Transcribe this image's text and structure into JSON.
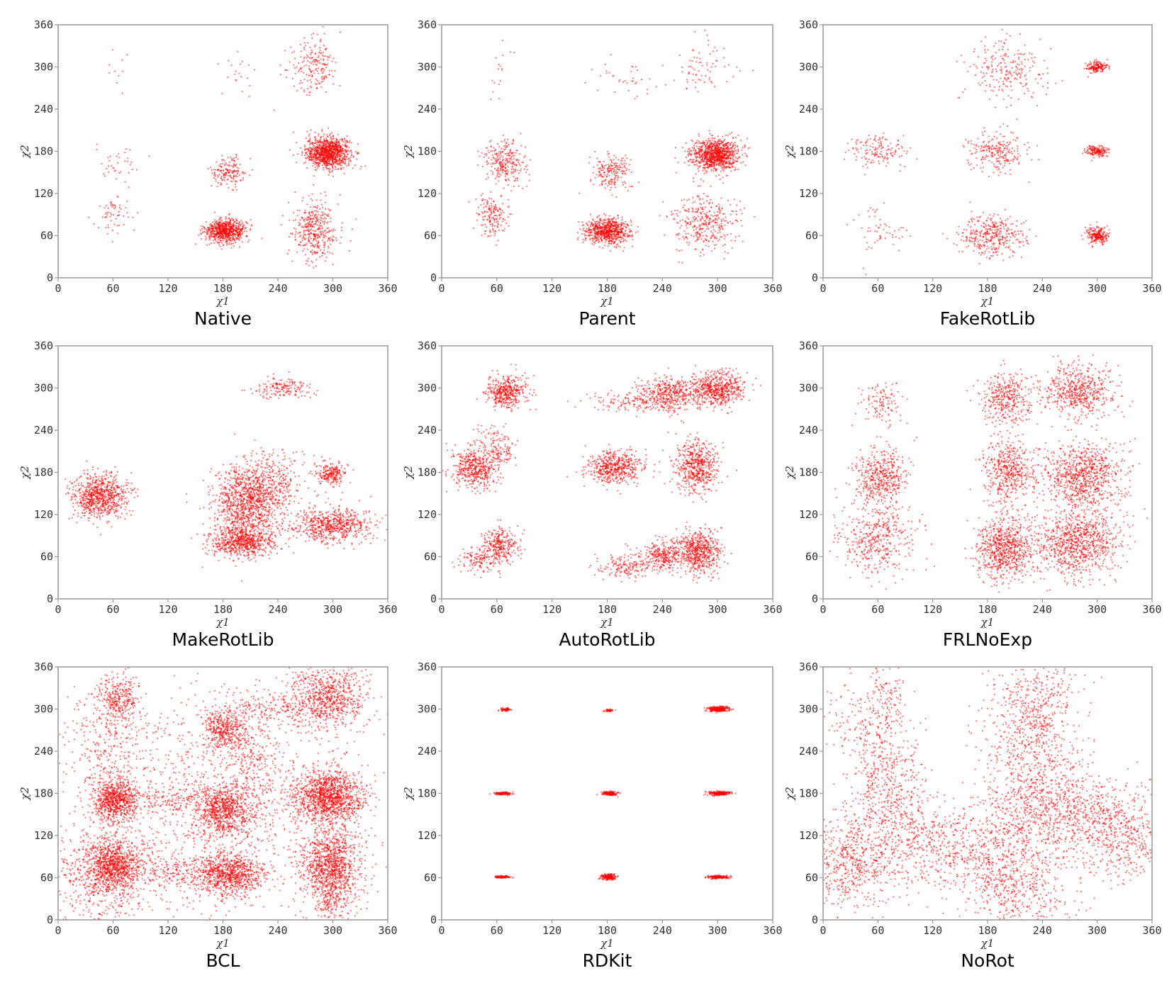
{
  "figure": {
    "point_color": "#ff0000"
  },
  "chart_data": [
    {
      "type": "scatter",
      "title": "Native",
      "xlabel": "χ1",
      "ylabel": "χ2",
      "xlim": [
        0,
        360
      ],
      "ylim": [
        0,
        360
      ],
      "xticks": [
        0,
        60,
        120,
        180,
        240,
        300,
        360
      ],
      "yticks": [
        0,
        60,
        120,
        180,
        240,
        300,
        360
      ],
      "grid": false,
      "clusters": [
        {
          "cx": 295,
          "cy": 178,
          "sx": 12,
          "sy": 11,
          "n": 3200
        },
        {
          "cx": 183,
          "cy": 67,
          "sx": 11,
          "sy": 8,
          "n": 2200
        },
        {
          "cx": 280,
          "cy": 68,
          "sx": 12,
          "sy": 22,
          "n": 1200
        },
        {
          "cx": 280,
          "cy": 300,
          "sx": 14,
          "sy": 20,
          "n": 600
        },
        {
          "cx": 185,
          "cy": 150,
          "sx": 10,
          "sy": 11,
          "n": 500
        },
        {
          "cx": 60,
          "cy": 88,
          "sx": 11,
          "sy": 14,
          "n": 180
        },
        {
          "cx": 65,
          "cy": 160,
          "sx": 12,
          "sy": 15,
          "n": 110
        },
        {
          "cx": 195,
          "cy": 285,
          "sx": 14,
          "sy": 18,
          "n": 60
        },
        {
          "cx": 65,
          "cy": 300,
          "sx": 6,
          "sy": 22,
          "n": 30
        }
      ]
    },
    {
      "type": "scatter",
      "title": "Parent",
      "xlabel": "χ1",
      "ylabel": "χ2",
      "xlim": [
        0,
        360
      ],
      "ylim": [
        0,
        360
      ],
      "xticks": [
        0,
        60,
        120,
        180,
        240,
        300,
        360
      ],
      "yticks": [
        0,
        60,
        120,
        180,
        240,
        300,
        360
      ],
      "grid": false,
      "clusters": [
        {
          "cx": 297,
          "cy": 175,
          "sx": 13,
          "sy": 11,
          "n": 3000
        },
        {
          "cx": 180,
          "cy": 66,
          "sx": 12,
          "sy": 9,
          "n": 2200
        },
        {
          "cx": 287,
          "cy": 80,
          "sx": 18,
          "sy": 20,
          "n": 1100
        },
        {
          "cx": 68,
          "cy": 165,
          "sx": 11,
          "sy": 16,
          "n": 800
        },
        {
          "cx": 55,
          "cy": 88,
          "sx": 8,
          "sy": 15,
          "n": 500
        },
        {
          "cx": 185,
          "cy": 150,
          "sx": 11,
          "sy": 12,
          "n": 600
        },
        {
          "cx": 285,
          "cy": 300,
          "sx": 16,
          "sy": 18,
          "n": 220
        },
        {
          "cx": 200,
          "cy": 285,
          "sx": 18,
          "sy": 15,
          "n": 110
        },
        {
          "cx": 65,
          "cy": 300,
          "sx": 5,
          "sy": 22,
          "n": 50
        }
      ]
    },
    {
      "type": "scatter",
      "title": "FakeRotLib",
      "xlabel": "χ1",
      "ylabel": "χ2",
      "xlim": [
        0,
        360
      ],
      "ylim": [
        0,
        360
      ],
      "xticks": [
        0,
        60,
        120,
        180,
        240,
        300,
        360
      ],
      "yticks": [
        0,
        60,
        120,
        180,
        240,
        300,
        360
      ],
      "grid": false,
      "clusters": [
        {
          "cx": 300,
          "cy": 300,
          "sx": 6,
          "sy": 4,
          "n": 500
        },
        {
          "cx": 300,
          "cy": 180,
          "sx": 6,
          "sy": 4,
          "n": 500
        },
        {
          "cx": 300,
          "cy": 60,
          "sx": 6,
          "sy": 6,
          "n": 700
        },
        {
          "cx": 200,
          "cy": 295,
          "sx": 22,
          "sy": 22,
          "n": 700
        },
        {
          "cx": 190,
          "cy": 180,
          "sx": 16,
          "sy": 14,
          "n": 700
        },
        {
          "cx": 185,
          "cy": 60,
          "sx": 18,
          "sy": 15,
          "n": 1100
        },
        {
          "cx": 60,
          "cy": 180,
          "sx": 15,
          "sy": 12,
          "n": 450
        },
        {
          "cx": 65,
          "cy": 65,
          "sx": 15,
          "sy": 18,
          "n": 170
        }
      ]
    },
    {
      "type": "scatter",
      "title": "MakeRotLib",
      "xlabel": "χ1",
      "ylabel": "χ2",
      "xlim": [
        0,
        360
      ],
      "ylim": [
        0,
        360
      ],
      "xticks": [
        0,
        60,
        120,
        180,
        240,
        300,
        360
      ],
      "yticks": [
        0,
        60,
        120,
        180,
        240,
        300,
        360
      ],
      "grid": false,
      "clusters": [
        {
          "cx": 45,
          "cy": 145,
          "sx": 15,
          "sy": 16,
          "n": 2400
        },
        {
          "cx": 205,
          "cy": 130,
          "sx": 18,
          "sy": 28,
          "n": 3200
        },
        {
          "cx": 230,
          "cy": 165,
          "sx": 18,
          "sy": 20,
          "n": 1200
        },
        {
          "cx": 200,
          "cy": 80,
          "sx": 18,
          "sy": 10,
          "n": 1800
        },
        {
          "cx": 300,
          "cy": 105,
          "sx": 22,
          "sy": 12,
          "n": 2000
        },
        {
          "cx": 298,
          "cy": 178,
          "sx": 9,
          "sy": 9,
          "n": 700
        },
        {
          "cx": 245,
          "cy": 300,
          "sx": 15,
          "sy": 7,
          "n": 500
        }
      ]
    },
    {
      "type": "scatter",
      "title": "AutoRotLib",
      "xlabel": "χ1",
      "ylabel": "χ2",
      "xlim": [
        0,
        360
      ],
      "ylim": [
        0,
        360
      ],
      "xticks": [
        0,
        60,
        120,
        180,
        240,
        300,
        360
      ],
      "yticks": [
        0,
        60,
        120,
        180,
        240,
        300,
        360
      ],
      "grid": false,
      "clusters": [
        {
          "cx": 70,
          "cy": 295,
          "sx": 11,
          "sy": 12,
          "n": 1300
        },
        {
          "cx": 35,
          "cy": 185,
          "sx": 12,
          "sy": 14,
          "n": 1400
        },
        {
          "cx": 60,
          "cy": 215,
          "sx": 12,
          "sy": 14,
          "n": 500
        },
        {
          "cx": 63,
          "cy": 75,
          "sx": 10,
          "sy": 12,
          "n": 900
        },
        {
          "cx": 40,
          "cy": 55,
          "sx": 11,
          "sy": 9,
          "n": 400
        },
        {
          "cx": 190,
          "cy": 187,
          "sx": 15,
          "sy": 11,
          "n": 1600
        },
        {
          "cx": 277,
          "cy": 188,
          "sx": 12,
          "sy": 18,
          "n": 1700
        },
        {
          "cx": 245,
          "cy": 292,
          "sx": 15,
          "sy": 12,
          "n": 1200
        },
        {
          "cx": 298,
          "cy": 298,
          "sx": 16,
          "sy": 12,
          "n": 1900
        },
        {
          "cx": 205,
          "cy": 280,
          "sx": 22,
          "sy": 8,
          "n": 400
        },
        {
          "cx": 280,
          "cy": 68,
          "sx": 12,
          "sy": 16,
          "n": 1800
        },
        {
          "cx": 242,
          "cy": 62,
          "sx": 13,
          "sy": 10,
          "n": 900
        },
        {
          "cx": 200,
          "cy": 45,
          "sx": 15,
          "sy": 8,
          "n": 500
        }
      ]
    },
    {
      "type": "scatter",
      "title": "FRLNoExp",
      "xlabel": "χ1",
      "ylabel": "χ2",
      "xlim": [
        0,
        360
      ],
      "ylim": [
        0,
        360
      ],
      "xticks": [
        0,
        60,
        120,
        180,
        240,
        300,
        360
      ],
      "yticks": [
        0,
        60,
        120,
        180,
        240,
        300,
        360
      ],
      "grid": false,
      "clusters": [
        {
          "cx": 62,
          "cy": 280,
          "sx": 12,
          "sy": 16,
          "n": 350
        },
        {
          "cx": 63,
          "cy": 175,
          "sx": 14,
          "sy": 20,
          "n": 1400
        },
        {
          "cx": 58,
          "cy": 85,
          "sx": 20,
          "sy": 26,
          "n": 1300
        },
        {
          "cx": 202,
          "cy": 285,
          "sx": 14,
          "sy": 18,
          "n": 1100
        },
        {
          "cx": 280,
          "cy": 295,
          "sx": 20,
          "sy": 18,
          "n": 1700
        },
        {
          "cx": 203,
          "cy": 182,
          "sx": 14,
          "sy": 24,
          "n": 1500
        },
        {
          "cx": 285,
          "cy": 175,
          "sx": 22,
          "sy": 24,
          "n": 2600
        },
        {
          "cx": 198,
          "cy": 70,
          "sx": 16,
          "sy": 22,
          "n": 2200
        },
        {
          "cx": 278,
          "cy": 78,
          "sx": 24,
          "sy": 24,
          "n": 2800
        }
      ]
    },
    {
      "type": "scatter",
      "title": "BCL",
      "xlabel": "χ1",
      "ylabel": "χ2",
      "xlim": [
        0,
        360
      ],
      "ylim": [
        0,
        360
      ],
      "xticks": [
        0,
        60,
        120,
        180,
        240,
        300,
        360
      ],
      "yticks": [
        0,
        60,
        120,
        180,
        240,
        300,
        360
      ],
      "grid": false,
      "clusters": [
        {
          "cx": 62,
          "cy": 170,
          "sx": 11,
          "sy": 16,
          "n": 2200
        },
        {
          "cx": 60,
          "cy": 80,
          "sx": 14,
          "sy": 18,
          "n": 2600
        },
        {
          "cx": 65,
          "cy": 315,
          "sx": 11,
          "sy": 16,
          "n": 900
        },
        {
          "cx": 45,
          "cy": 60,
          "sx": 28,
          "sy": 35,
          "n": 1500
        },
        {
          "cx": 55,
          "cy": 250,
          "sx": 25,
          "sy": 40,
          "n": 900
        },
        {
          "cx": 180,
          "cy": 270,
          "sx": 12,
          "sy": 14,
          "n": 1200
        },
        {
          "cx": 180,
          "cy": 155,
          "sx": 14,
          "sy": 18,
          "n": 2200
        },
        {
          "cx": 185,
          "cy": 65,
          "sx": 18,
          "sy": 15,
          "n": 2600
        },
        {
          "cx": 210,
          "cy": 210,
          "sx": 15,
          "sy": 50,
          "n": 900
        },
        {
          "cx": 295,
          "cy": 175,
          "sx": 18,
          "sy": 18,
          "n": 3800
        },
        {
          "cx": 298,
          "cy": 80,
          "sx": 16,
          "sy": 25,
          "n": 3000
        },
        {
          "cx": 295,
          "cy": 320,
          "sx": 20,
          "sy": 22,
          "n": 2200
        },
        {
          "cx": 300,
          "cy": 30,
          "sx": 12,
          "sy": 25,
          "n": 800
        },
        {
          "cx": 180,
          "cy": 170,
          "sx": 90,
          "sy": 90,
          "n": 4000
        },
        {
          "cx": 120,
          "cy": 170,
          "sx": 40,
          "sy": 10,
          "n": 700
        },
        {
          "cx": 120,
          "cy": 70,
          "sx": 40,
          "sy": 10,
          "n": 700
        },
        {
          "cx": 240,
          "cy": 300,
          "sx": 35,
          "sy": 10,
          "n": 600
        }
      ]
    },
    {
      "type": "scatter",
      "title": "RDKit",
      "xlabel": "χ1",
      "ylabel": "χ2",
      "xlim": [
        0,
        360
      ],
      "ylim": [
        0,
        360
      ],
      "xticks": [
        0,
        60,
        120,
        180,
        240,
        300,
        360
      ],
      "yticks": [
        0,
        60,
        120,
        180,
        240,
        300,
        360
      ],
      "grid": false,
      "clusters": [
        {
          "cx": 70,
          "cy": 299,
          "sx": 3,
          "sy": 1.2,
          "n": 200
        },
        {
          "cx": 182,
          "cy": 298,
          "sx": 2.5,
          "sy": 1,
          "n": 150
        },
        {
          "cx": 301,
          "cy": 300,
          "sx": 6,
          "sy": 1.8,
          "n": 800
        },
        {
          "cx": 67,
          "cy": 180,
          "sx": 4.5,
          "sy": 1,
          "n": 500
        },
        {
          "cx": 182,
          "cy": 180,
          "sx": 4,
          "sy": 1.5,
          "n": 500
        },
        {
          "cx": 302,
          "cy": 180,
          "sx": 6,
          "sy": 1.5,
          "n": 700
        },
        {
          "cx": 66,
          "cy": 61,
          "sx": 4,
          "sy": 0.8,
          "n": 400
        },
        {
          "cx": 182,
          "cy": 61,
          "sx": 4,
          "sy": 2,
          "n": 600
        },
        {
          "cx": 300,
          "cy": 61,
          "sx": 6,
          "sy": 1.2,
          "n": 600
        }
      ]
    },
    {
      "type": "scatter",
      "title": "NoRot",
      "xlabel": "χ1",
      "ylabel": "χ2",
      "xlim": [
        0,
        360
      ],
      "ylim": [
        0,
        360
      ],
      "xticks": [
        0,
        60,
        120,
        180,
        240,
        300,
        360
      ],
      "yticks": [
        0,
        60,
        120,
        180,
        240,
        300,
        360
      ],
      "grid": false,
      "clusters": [
        {
          "cx": 30,
          "cy": 80,
          "sx": 22,
          "sy": 35,
          "n": 1600
        },
        {
          "cx": 70,
          "cy": 190,
          "sx": 20,
          "sy": 45,
          "n": 1500
        },
        {
          "cx": 70,
          "cy": 320,
          "sx": 10,
          "sy": 25,
          "n": 350
        },
        {
          "cx": 110,
          "cy": 110,
          "sx": 35,
          "sy": 35,
          "n": 1500
        },
        {
          "cx": 190,
          "cy": 90,
          "sx": 30,
          "sy": 40,
          "n": 1800
        },
        {
          "cx": 230,
          "cy": 290,
          "sx": 25,
          "sy": 45,
          "n": 1800
        },
        {
          "cx": 240,
          "cy": 170,
          "sx": 30,
          "sy": 45,
          "n": 2200
        },
        {
          "cx": 225,
          "cy": 30,
          "sx": 25,
          "sy": 25,
          "n": 700
        },
        {
          "cx": 330,
          "cy": 120,
          "sx": 25,
          "sy": 35,
          "n": 1300
        },
        {
          "cx": 290,
          "cy": 150,
          "sx": 25,
          "sy": 30,
          "n": 900
        },
        {
          "cx": 40,
          "cy": 280,
          "sx": 20,
          "sy": 30,
          "n": 400
        }
      ]
    }
  ]
}
